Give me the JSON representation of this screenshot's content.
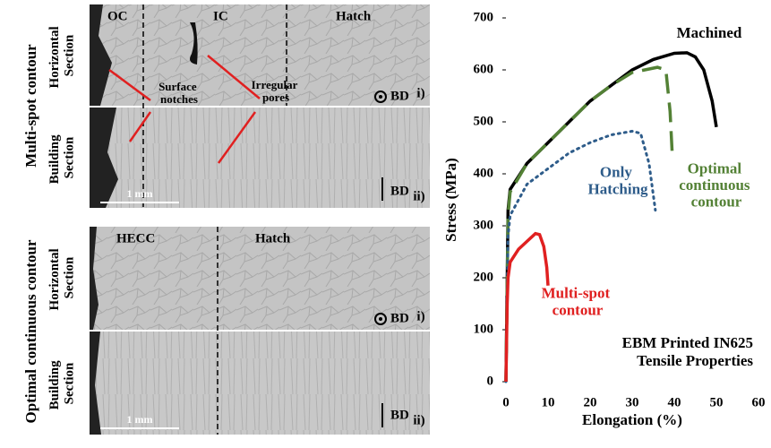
{
  "micrographs": {
    "top_group": {
      "title": "Multi-spot contour",
      "horizontal_label": "Horizontal Section",
      "building_label": "Building Section",
      "regions": [
        "OC",
        "IC",
        "Hatch"
      ],
      "callouts": [
        "Surface notches",
        "Irregular pores"
      ],
      "horizontal_tag": "i)",
      "building_tag": "ii)",
      "direction": "BD",
      "scale": "1 mm"
    },
    "bottom_group": {
      "title": "Optimal continuous contour",
      "horizontal_label": "Horizontal Section",
      "building_label": "Building Section",
      "regions": [
        "HECC",
        "Hatch"
      ],
      "horizontal_tag": "i)",
      "building_tag": "ii)",
      "direction": "BD",
      "scale": "1 mm"
    }
  },
  "chart_data": {
    "type": "line",
    "xlabel": "Elongation (%)",
    "ylabel": "Stress (MPa)",
    "xlim": [
      0,
      60
    ],
    "xticks": [
      0,
      10,
      20,
      30,
      40,
      50,
      60
    ],
    "ylim": [
      0,
      700
    ],
    "yticks": [
      0,
      100,
      200,
      300,
      400,
      500,
      600,
      700
    ],
    "annotation": [
      "EBM Printed IN625",
      "Tensile Properties"
    ],
    "series": [
      {
        "name": "Machined",
        "color": "#000000",
        "dash": "solid",
        "x": [
          0,
          0.5,
          1,
          5,
          10,
          15,
          20,
          25,
          30,
          35,
          40,
          43,
          45,
          47,
          49,
          50
        ],
        "values": [
          0,
          330,
          370,
          420,
          460,
          500,
          540,
          570,
          600,
          620,
          632,
          633,
          625,
          600,
          540,
          490
        ]
      },
      {
        "name": "Optimal continuous contour",
        "color": "#538135",
        "dash": "dashed",
        "x": [
          0,
          0.5,
          1,
          5,
          10,
          15,
          20,
          25,
          30,
          36,
          38,
          39,
          39.5
        ],
        "values": [
          0,
          320,
          365,
          420,
          460,
          500,
          540,
          570,
          595,
          605,
          600,
          520,
          440
        ]
      },
      {
        "name": "Only Hatching",
        "color": "#2e5c8a",
        "dash": "dotted",
        "x": [
          0,
          0.5,
          1,
          5,
          10,
          15,
          20,
          25,
          30,
          32,
          34,
          35.5
        ],
        "values": [
          0,
          280,
          320,
          380,
          410,
          440,
          460,
          475,
          482,
          478,
          420,
          330
        ]
      },
      {
        "name": "Multi-spot contour",
        "color": "#e02020",
        "dash": "solid",
        "x": [
          0,
          0.3,
          0.5,
          1,
          3,
          5,
          7,
          8,
          9,
          9.7,
          10
        ],
        "values": [
          0,
          150,
          200,
          230,
          255,
          270,
          285,
          283,
          260,
          220,
          185
        ]
      }
    ]
  }
}
